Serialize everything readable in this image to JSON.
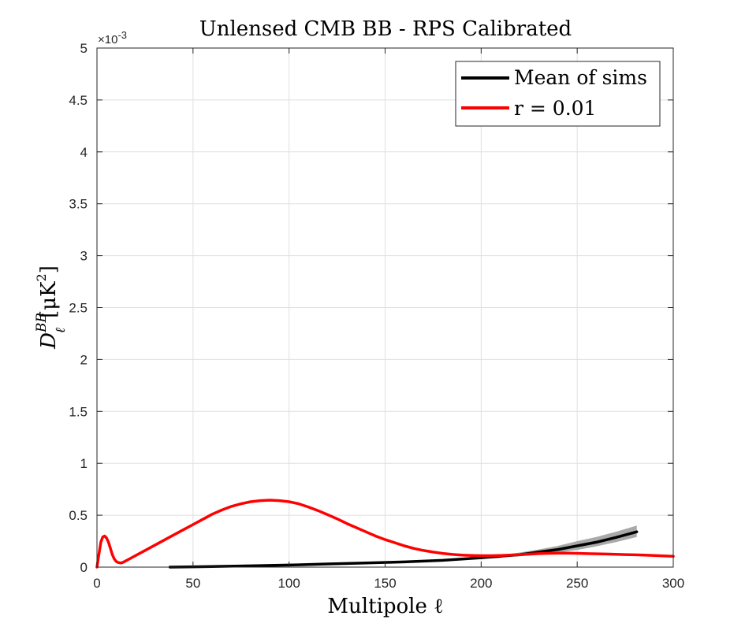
{
  "chart_data": {
    "type": "line",
    "title": "Unlensed CMB BB - RPS Calibrated",
    "xlabel": "Multipole ℓ",
    "ylabel": "D_ℓ^{BB} [μK²]",
    "ylabel_parts": {
      "main": "D",
      "sub": "ℓ",
      "sup": "BB",
      "unit": "[μK",
      "unit_sup": "2",
      "unit_close": "]"
    },
    "y_exponent_label": "×10",
    "y_exponent_power": "-3",
    "xlim": [
      0,
      300
    ],
    "ylim": [
      0,
      5
    ],
    "x_ticks": [
      0,
      50,
      100,
      150,
      200,
      250,
      300
    ],
    "x_tick_labels": [
      "0",
      "50",
      "100",
      "150",
      "200",
      "250",
      "300"
    ],
    "y_ticks": [
      0,
      0.5,
      1,
      1.5,
      2,
      2.5,
      3,
      3.5,
      4,
      4.5,
      5
    ],
    "y_tick_labels": [
      "0",
      "0.5",
      "1",
      "1.5",
      "2",
      "2.5",
      "3",
      "3.5",
      "4",
      "4.5",
      "5"
    ],
    "grid": true,
    "legend_position": "top-right",
    "series": [
      {
        "name": "Mean of sims",
        "color": "#000000",
        "x": [
          38,
          60,
          80,
          100,
          120,
          140,
          160,
          180,
          200,
          210,
          220,
          230,
          240,
          250,
          260,
          270,
          281
        ],
        "y": [
          0.0,
          0.005,
          0.012,
          0.02,
          0.03,
          0.04,
          0.05,
          0.065,
          0.09,
          0.105,
          0.12,
          0.145,
          0.17,
          0.205,
          0.24,
          0.285,
          0.34
        ],
        "band_upper": [
          0.0,
          0.005,
          0.012,
          0.02,
          0.03,
          0.04,
          0.05,
          0.068,
          0.095,
          0.115,
          0.14,
          0.17,
          0.205,
          0.25,
          0.29,
          0.34,
          0.4
        ],
        "band_lower": [
          0.0,
          0.005,
          0.012,
          0.02,
          0.03,
          0.04,
          0.05,
          0.062,
          0.085,
          0.095,
          0.105,
          0.12,
          0.14,
          0.165,
          0.2,
          0.24,
          0.29
        ],
        "band_color": "#a9a9a9"
      },
      {
        "name": "r = 0.01",
        "color": "#ff0000",
        "x": [
          0,
          1,
          2,
          3,
          4,
          5,
          6,
          7,
          8,
          9,
          10,
          11,
          12,
          13,
          14,
          15,
          17,
          20,
          25,
          30,
          35,
          40,
          45,
          50,
          55,
          60,
          65,
          70,
          75,
          80,
          85,
          90,
          95,
          100,
          105,
          110,
          115,
          120,
          125,
          130,
          135,
          140,
          145,
          150,
          155,
          160,
          165,
          170,
          175,
          180,
          185,
          190,
          195,
          200,
          205,
          210,
          215,
          220,
          225,
          230,
          235,
          240,
          245,
          250,
          255,
          260,
          265,
          270,
          275,
          280,
          285,
          290,
          295,
          300
        ],
        "y": [
          0.0,
          0.12,
          0.24,
          0.29,
          0.3,
          0.28,
          0.24,
          0.18,
          0.12,
          0.08,
          0.055,
          0.045,
          0.04,
          0.042,
          0.05,
          0.06,
          0.08,
          0.11,
          0.16,
          0.21,
          0.26,
          0.31,
          0.36,
          0.41,
          0.46,
          0.51,
          0.55,
          0.585,
          0.61,
          0.63,
          0.64,
          0.645,
          0.64,
          0.63,
          0.61,
          0.58,
          0.545,
          0.505,
          0.465,
          0.42,
          0.38,
          0.34,
          0.3,
          0.265,
          0.235,
          0.205,
          0.18,
          0.16,
          0.145,
          0.132,
          0.122,
          0.116,
          0.112,
          0.11,
          0.11,
          0.112,
          0.115,
          0.12,
          0.125,
          0.13,
          0.133,
          0.134,
          0.134,
          0.133,
          0.13,
          0.128,
          0.126,
          0.124,
          0.121,
          0.118,
          0.115,
          0.112,
          0.108,
          0.104
        ]
      }
    ]
  }
}
